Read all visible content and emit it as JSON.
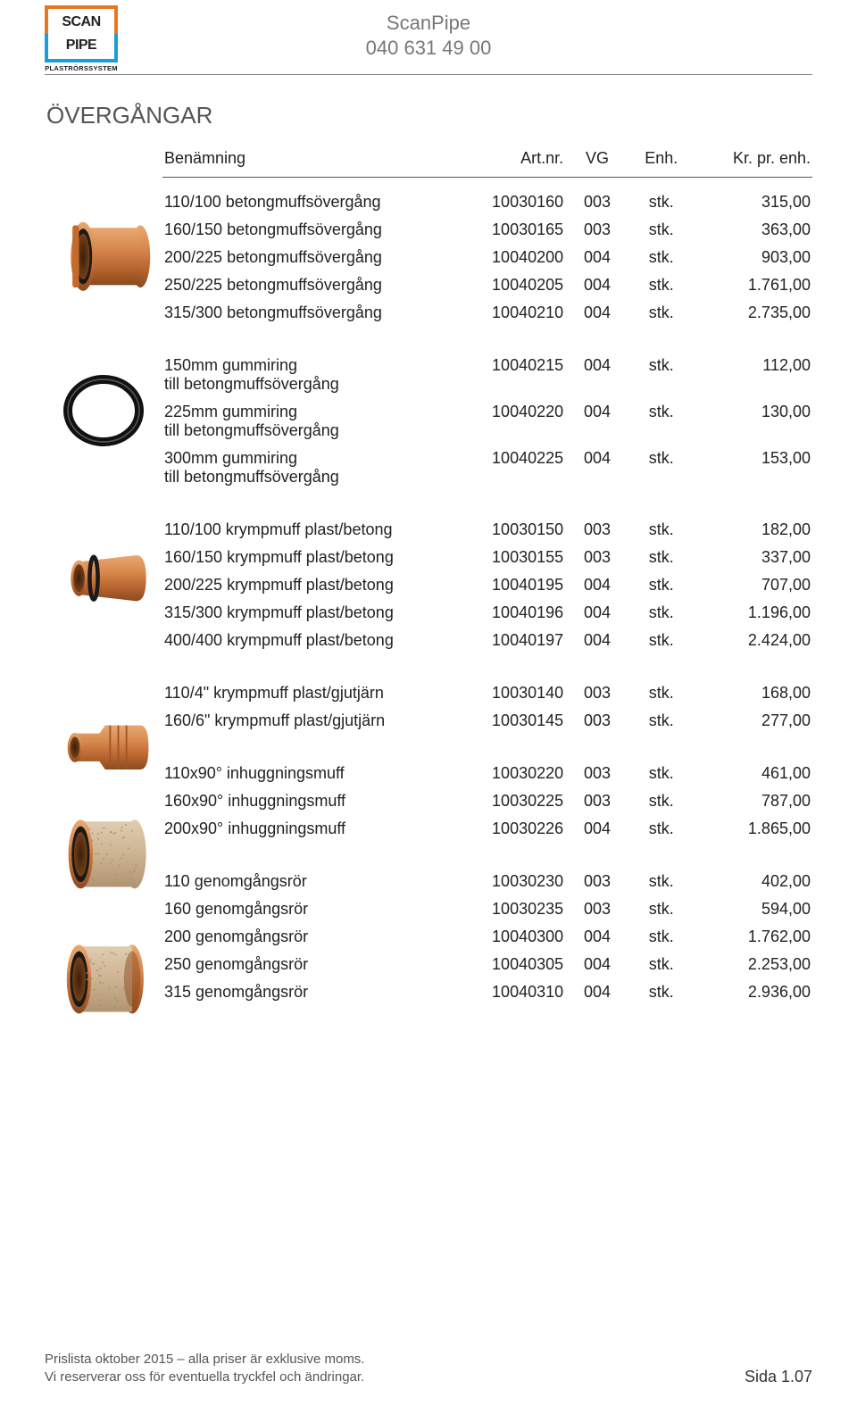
{
  "header": {
    "logo_top": "SCAN",
    "logo_bottom": "PIPE",
    "logo_sub": "PLASTRÖRSSYSTEM",
    "company": "ScanPipe",
    "phone": "040 631 49 00"
  },
  "section_title": "ÖVERGÅNGAR",
  "table_headers": {
    "name": "Benämning",
    "art": "Art.nr.",
    "vg": "VG",
    "enh": "Enh.",
    "price": "Kr. pr. enh."
  },
  "groups": [
    {
      "image": "fitting1",
      "rows": [
        {
          "name": "110/100 betongmuffsövergång",
          "art": "10030160",
          "vg": "003",
          "enh": "stk.",
          "price": "315,00"
        },
        {
          "name": "160/150 betongmuffsövergång",
          "art": "10030165",
          "vg": "003",
          "enh": "stk.",
          "price": "363,00"
        },
        {
          "name": "200/225 betongmuffsövergång",
          "art": "10040200",
          "vg": "004",
          "enh": "stk.",
          "price": "903,00"
        },
        {
          "name": "250/225 betongmuffsövergång",
          "art": "10040205",
          "vg": "004",
          "enh": "stk.",
          "price": "1.761,00"
        },
        {
          "name": "315/300 betongmuffsövergång",
          "art": "10040210",
          "vg": "004",
          "enh": "stk.",
          "price": "2.735,00"
        }
      ]
    },
    {
      "image": "oring",
      "rows": [
        {
          "name": "150mm gummiring\ntill betongmuffsövergång",
          "art": "10040215",
          "vg": "004",
          "enh": "stk.",
          "price": "112,00"
        },
        {
          "name": "225mm gummiring\ntill betongmuffsövergång",
          "art": "10040220",
          "vg": "004",
          "enh": "stk.",
          "price": "130,00"
        },
        {
          "name": "300mm gummiring\ntill betongmuffsövergång",
          "art": "10040225",
          "vg": "004",
          "enh": "stk.",
          "price": "153,00"
        }
      ]
    },
    {
      "image": "fitting2",
      "rows": [
        {
          "name": "110/100 krympmuff plast/betong",
          "art": "10030150",
          "vg": "003",
          "enh": "stk.",
          "price": "182,00"
        },
        {
          "name": "160/150 krympmuff plast/betong",
          "art": "10030155",
          "vg": "003",
          "enh": "stk.",
          "price": "337,00"
        },
        {
          "name": "200/225 krympmuff plast/betong",
          "art": "10040195",
          "vg": "004",
          "enh": "stk.",
          "price": "707,00"
        },
        {
          "name": "315/300 krympmuff plast/betong",
          "art": "10040196",
          "vg": "004",
          "enh": "stk.",
          "price": "1.196,00"
        },
        {
          "name": "400/400 krympmuff plast/betong",
          "art": "10040197",
          "vg": "004",
          "enh": "stk.",
          "price": "2.424,00"
        }
      ]
    },
    {
      "image": "fitting3",
      "rows": [
        {
          "name": "110/4\" krympmuff plast/gjutjärn",
          "art": "10030140",
          "vg": "003",
          "enh": "stk.",
          "price": "168,00"
        },
        {
          "name": "160/6\" krympmuff plast/gjutjärn",
          "art": "10030145",
          "vg": "003",
          "enh": "stk.",
          "price": "277,00"
        }
      ]
    },
    {
      "image": "fitting4",
      "rows": [
        {
          "name": "110x90° inhuggningsmuff",
          "art": "10030220",
          "vg": "003",
          "enh": "stk.",
          "price": "461,00"
        },
        {
          "name": "160x90° inhuggningsmuff",
          "art": "10030225",
          "vg": "003",
          "enh": "stk.",
          "price": "787,00"
        },
        {
          "name": "200x90° inhuggningsmuff",
          "art": "10030226",
          "vg": "004",
          "enh": "stk.",
          "price": "1.865,00"
        }
      ]
    },
    {
      "image": "fitting5",
      "rows": [
        {
          "name": "110 genomgångsrör",
          "art": "10030230",
          "vg": "003",
          "enh": "stk.",
          "price": "402,00"
        },
        {
          "name": "160 genomgångsrör",
          "art": "10030235",
          "vg": "003",
          "enh": "stk.",
          "price": "594,00"
        },
        {
          "name": "200 genomgångsrör",
          "art": "10040300",
          "vg": "004",
          "enh": "stk.",
          "price": "1.762,00"
        },
        {
          "name": "250 genomgångsrör",
          "art": "10040305",
          "vg": "004",
          "enh": "stk.",
          "price": "2.253,00"
        },
        {
          "name": "315 genomgångsrör",
          "art": "10040310",
          "vg": "004",
          "enh": "stk.",
          "price": "2.936,00"
        }
      ]
    }
  ],
  "images": {
    "heights": [
      195,
      195,
      195,
      115,
      140,
      175
    ],
    "slot_paddings": [
      35,
      10,
      10,
      0,
      0,
      0
    ]
  },
  "colors": {
    "pipe_light": "#d98a4f",
    "pipe_mid": "#c56a2a",
    "pipe_dark": "#8b4a1f",
    "pipe_inner": "#5b2f10",
    "sand_light": "#dcc5a8",
    "sand_dark": "#b89b78",
    "ring_black": "#1a1a1a"
  },
  "footer": {
    "line1": "Prislista oktober 2015 – alla priser är exklusive moms.",
    "line2": "Vi reserverar oss för eventuella tryckfel och ändringar.",
    "page": "Sida 1.07"
  }
}
